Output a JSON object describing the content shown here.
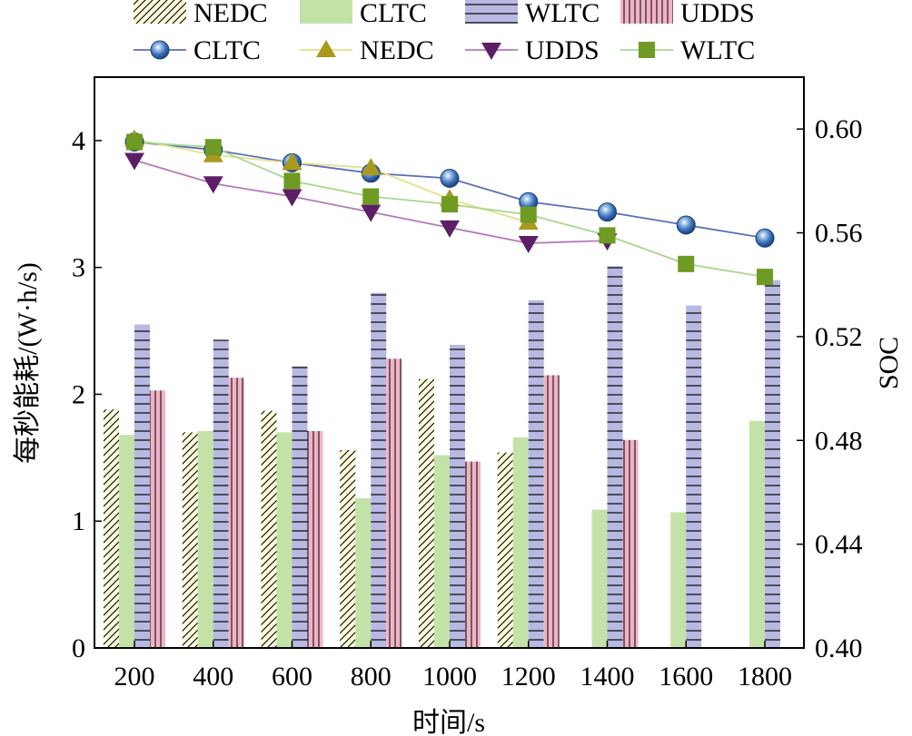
{
  "chart_data": {
    "type": "bar",
    "categories": [
      "200",
      "400",
      "600",
      "800",
      "1000",
      "1200",
      "1400",
      "1600",
      "1800"
    ],
    "xlabel": "时间/s",
    "ylabel": "每秒能耗/(W·h/s)",
    "y2label": "SOC",
    "ylim": [
      0,
      4.5
    ],
    "yticks": [
      "0",
      "1",
      "2",
      "3",
      "4"
    ],
    "y2lim": [
      0.4,
      0.62
    ],
    "y2ticks": [
      "0.40",
      "0.44",
      "0.48",
      "0.52",
      "0.56",
      "0.60"
    ],
    "grid": false,
    "legend_position": "top",
    "bar_series": [
      {
        "name": "NEDC",
        "values": [
          1.88,
          1.7,
          1.87,
          1.56,
          2.12,
          1.54,
          null,
          null,
          null
        ],
        "color": "#fbfbdc",
        "pattern": "diagonal"
      },
      {
        "name": "CLTC",
        "values": [
          1.68,
          1.71,
          1.7,
          1.18,
          1.52,
          1.66,
          1.09,
          1.07,
          1.79
        ],
        "color": "#c2e2a8",
        "pattern": "solid"
      },
      {
        "name": "WLTC",
        "values": [
          2.55,
          2.43,
          2.22,
          2.8,
          2.39,
          2.74,
          3.01,
          2.7,
          2.9
        ],
        "color": "#b7b9e2",
        "pattern": "horizontal"
      },
      {
        "name": "UDDS",
        "values": [
          2.03,
          2.13,
          1.71,
          2.28,
          1.47,
          2.15,
          1.64,
          null,
          null
        ],
        "color": "#f2b2c6",
        "pattern": "vertical"
      }
    ],
    "line_series": [
      {
        "name": "CLTC",
        "values": [
          0.595,
          0.592,
          0.587,
          0.583,
          0.581,
          0.572,
          0.568,
          0.563,
          0.558
        ],
        "color": "#4a62b5",
        "marker": "circle"
      },
      {
        "name": "NEDC",
        "values": [
          0.596,
          0.59,
          0.587,
          0.585,
          0.573,
          0.564,
          null,
          null,
          null
        ],
        "color": "#a89a1c",
        "marker": "triangle-up"
      },
      {
        "name": "UDDS",
        "values": [
          0.588,
          0.579,
          0.574,
          0.568,
          0.562,
          0.556,
          0.557,
          null,
          null
        ],
        "color": "#5c1f66",
        "marker": "triangle-down"
      },
      {
        "name": "WLTC",
        "values": [
          0.595,
          0.593,
          0.58,
          0.574,
          0.571,
          0.567,
          0.559,
          0.548,
          0.543
        ],
        "color": "#6f9a23",
        "marker": "square"
      }
    ]
  }
}
